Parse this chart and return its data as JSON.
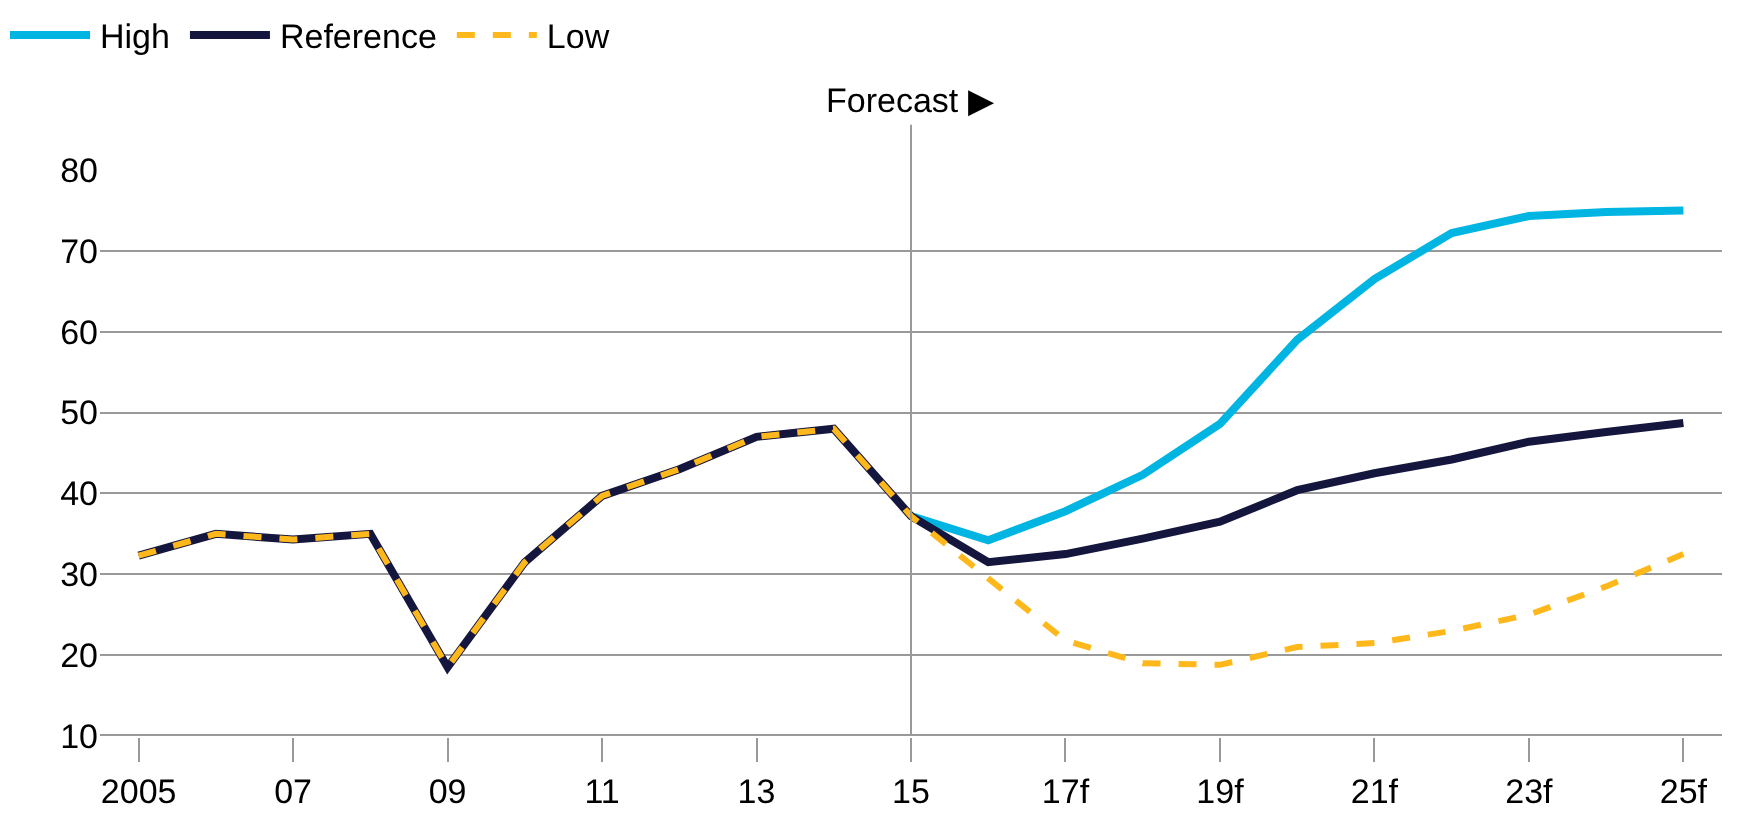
{
  "chart_data": {
    "type": "line",
    "categories": [
      "2005",
      null,
      "07",
      null,
      "09",
      null,
      "11",
      null,
      "13",
      null,
      "15",
      null,
      "17f",
      null,
      "19f",
      null,
      "21f",
      null,
      "23f",
      null,
      "25f"
    ],
    "series": [
      {
        "name": "High",
        "color": "#00b5e2",
        "line_style": "solid",
        "values": [
          null,
          null,
          null,
          null,
          null,
          null,
          null,
          null,
          null,
          null,
          37.2,
          34.2,
          37.8,
          42.3,
          48.6,
          59,
          66.5,
          72.2,
          74.3,
          74.8,
          75
        ]
      },
      {
        "name": "Reference",
        "color": "#14163d",
        "line_style": "solid",
        "values": [
          32.3,
          35,
          34.3,
          35,
          18.5,
          31.5,
          39.7,
          43,
          47,
          48,
          37.2,
          31.5,
          32.5,
          34.4,
          36.5,
          40.4,
          42.5,
          44.2,
          46.4,
          47.6,
          48.7
        ]
      },
      {
        "name": "Low",
        "color": "#ffb81c",
        "line_style": "dashed",
        "values": [
          32.3,
          35,
          34.3,
          35,
          18.5,
          31.5,
          39.7,
          43,
          47,
          48,
          37.2,
          29.5,
          21.8,
          19,
          18.8,
          21,
          21.5,
          23,
          25,
          28.5,
          32.5
        ]
      }
    ],
    "ylim": [
      10,
      80
    ],
    "yticks": [
      10,
      20,
      30,
      40,
      50,
      60,
      70,
      80
    ],
    "grid": "y",
    "legend": "top left",
    "marker": "none",
    "ref_lines": [
      {
        "axis": "x",
        "value": "15",
        "label": "Forecast ▶",
        "color": "#999999"
      }
    ]
  }
}
